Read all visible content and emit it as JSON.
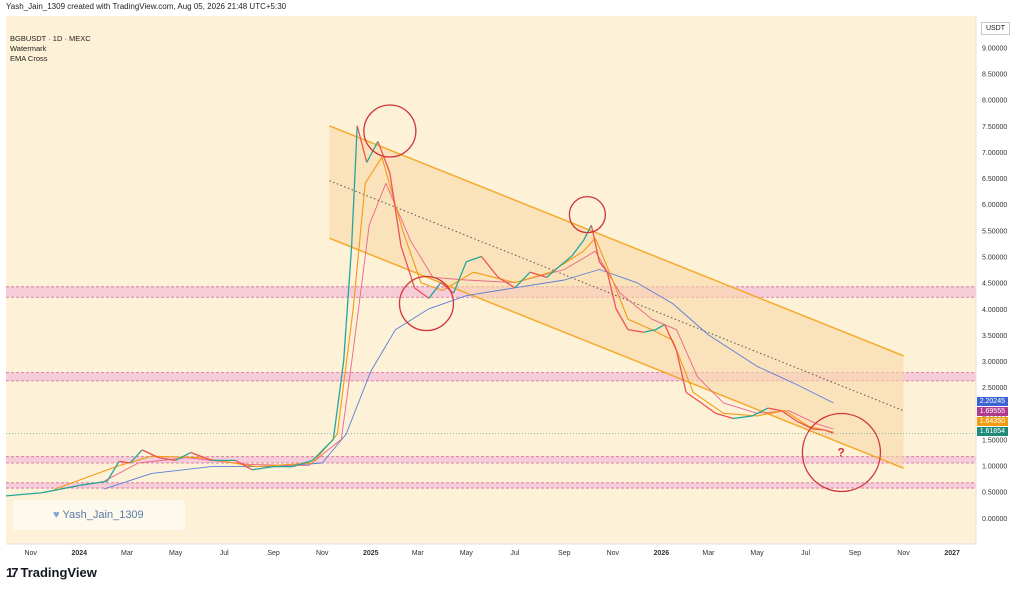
{
  "header": {
    "created_by": "Yash_Jain_1309 created with TradingView.com, Aug 05, 2026 21:48 UTC+5:30"
  },
  "legend": {
    "symbol": "BGBUSDT · 1D · MEXC",
    "line2": "Watermark",
    "line3": "EMA Cross"
  },
  "currency_label": "USDT",
  "watermark_text": "Yash_Jain_1309",
  "footer_logo": "TradingView",
  "annotation_question": "?",
  "colors": {
    "background": "#fdf1d7",
    "channel_line": "#f5a623",
    "channel_fill": "#f9d9a8",
    "zone_fill": "#f4c6d8",
    "zone_border": "#d06a9a",
    "circle": "#d0353c",
    "ema_fast": "#f39c12",
    "ema_slow": "#e8668a",
    "ema_long": "#5b7fd6",
    "candle_up": "#26a69a",
    "candle_down": "#ef5350"
  },
  "price_tags": [
    {
      "value": "2.20245",
      "color": "#3b63d1"
    },
    {
      "value": "1.69555",
      "color": "#b23a8c"
    },
    {
      "value": "1.64350",
      "color": "#f39c12"
    },
    {
      "value": "1.61854",
      "color": "#1f8a7a"
    }
  ],
  "chart_data": {
    "type": "line",
    "title": "BGBUSDT · 1D · MEXC",
    "y_axis_label": "USDT",
    "y_ticks": [
      0.0,
      0.5,
      1.0,
      1.5,
      2.0,
      2.5,
      3.0,
      3.5,
      4.0,
      4.5,
      5.0,
      5.5,
      6.0,
      6.5,
      7.0,
      7.5,
      8.0,
      8.5,
      9.0
    ],
    "y_tick_labels": [
      "0.00000",
      "0.50000",
      "1.00000",
      "1.50000",
      "2.00000",
      "2.50000",
      "3.00000",
      "3.50000",
      "4.00000",
      "4.50000",
      "5.00000",
      "5.50000",
      "6.00000",
      "6.50000",
      "7.00000",
      "7.50000",
      "8.00000",
      "8.50000",
      "9.00000"
    ],
    "ylim": [
      -0.5,
      9.6
    ],
    "x_axis_range": [
      "2023-10-01",
      "2027-01-31"
    ],
    "x_ticks": [
      {
        "date": "2023-11-01",
        "label": "Nov"
      },
      {
        "date": "2024-01-01",
        "label": "2024"
      },
      {
        "date": "2024-03-01",
        "label": "Mar"
      },
      {
        "date": "2024-05-01",
        "label": "May"
      },
      {
        "date": "2024-07-01",
        "label": "Jul"
      },
      {
        "date": "2024-09-01",
        "label": "Sep"
      },
      {
        "date": "2024-11-01",
        "label": "Nov"
      },
      {
        "date": "2025-01-01",
        "label": "2025"
      },
      {
        "date": "2025-03-01",
        "label": "Mar"
      },
      {
        "date": "2025-05-01",
        "label": "May"
      },
      {
        "date": "2025-07-01",
        "label": "Jul"
      },
      {
        "date": "2025-09-01",
        "label": "Sep"
      },
      {
        "date": "2025-11-01",
        "label": "Nov"
      },
      {
        "date": "2026-01-01",
        "label": "2026"
      },
      {
        "date": "2026-03-01",
        "label": "Mar"
      },
      {
        "date": "2026-05-01",
        "label": "May"
      },
      {
        "date": "2026-07-01",
        "label": "Jul"
      },
      {
        "date": "2026-09-01",
        "label": "Sep"
      },
      {
        "date": "2026-11-01",
        "label": "Nov"
      },
      {
        "date": "2027-01-01",
        "label": "2027"
      }
    ],
    "price": [
      [
        "2023-10-01",
        0.42
      ],
      [
        "2023-11-15",
        0.48
      ],
      [
        "2024-01-01",
        0.62
      ],
      [
        "2024-02-05",
        0.7
      ],
      [
        "2024-02-20",
        1.08
      ],
      [
        "2024-03-05",
        1.05
      ],
      [
        "2024-03-20",
        1.3
      ],
      [
        "2024-04-10",
        1.15
      ],
      [
        "2024-05-01",
        1.1
      ],
      [
        "2024-05-20",
        1.25
      ],
      [
        "2024-06-15",
        1.1
      ],
      [
        "2024-07-15",
        1.1
      ],
      [
        "2024-08-05",
        0.92
      ],
      [
        "2024-09-01",
        0.98
      ],
      [
        "2024-09-25",
        0.98
      ],
      [
        "2024-10-20",
        1.1
      ],
      [
        "2024-11-15",
        1.5
      ],
      [
        "2024-11-28",
        3.0
      ],
      [
        "2024-12-08",
        5.2
      ],
      [
        "2024-12-15",
        7.5
      ],
      [
        "2024-12-27",
        6.8
      ],
      [
        "2025-01-10",
        7.2
      ],
      [
        "2025-01-25",
        6.6
      ],
      [
        "2025-02-08",
        5.2
      ],
      [
        "2025-02-25",
        4.4
      ],
      [
        "2025-03-15",
        4.2
      ],
      [
        "2025-03-30",
        4.5
      ],
      [
        "2025-04-15",
        4.3
      ],
      [
        "2025-05-01",
        4.9
      ],
      [
        "2025-05-20",
        5.0
      ],
      [
        "2025-06-10",
        4.6
      ],
      [
        "2025-07-01",
        4.4
      ],
      [
        "2025-07-20",
        4.7
      ],
      [
        "2025-08-10",
        4.6
      ],
      [
        "2025-08-25",
        4.8
      ],
      [
        "2025-09-10",
        5.0
      ],
      [
        "2025-09-25",
        5.3
      ],
      [
        "2025-10-05",
        5.6
      ],
      [
        "2025-10-15",
        4.9
      ],
      [
        "2025-10-25",
        4.7
      ],
      [
        "2025-11-05",
        4.0
      ],
      [
        "2025-11-20",
        3.6
      ],
      [
        "2025-12-10",
        3.55
      ],
      [
        "2025-12-25",
        3.6
      ],
      [
        "2026-01-05",
        3.7
      ],
      [
        "2026-01-20",
        3.2
      ],
      [
        "2026-02-01",
        2.4
      ],
      [
        "2026-02-20",
        2.2
      ],
      [
        "2026-03-10",
        2.0
      ],
      [
        "2026-04-01",
        1.9
      ],
      [
        "2026-04-25",
        1.95
      ],
      [
        "2026-05-15",
        2.1
      ],
      [
        "2026-06-01",
        2.05
      ],
      [
        "2026-06-20",
        1.85
      ],
      [
        "2026-07-10",
        1.7
      ],
      [
        "2026-07-25",
        1.68
      ],
      [
        "2026-08-05",
        1.62
      ]
    ],
    "ema_fast": [
      [
        "2023-12-01",
        0.55
      ],
      [
        "2024-02-20",
        1.0
      ],
      [
        "2024-04-01",
        1.18
      ],
      [
        "2024-06-01",
        1.15
      ],
      [
        "2024-08-10",
        0.98
      ],
      [
        "2024-10-20",
        1.05
      ],
      [
        "2024-11-20",
        1.6
      ],
      [
        "2024-12-10",
        4.0
      ],
      [
        "2024-12-25",
        6.4
      ],
      [
        "2025-01-15",
        6.9
      ],
      [
        "2025-02-10",
        5.5
      ],
      [
        "2025-03-05",
        4.5
      ],
      [
        "2025-04-01",
        4.35
      ],
      [
        "2025-05-10",
        4.7
      ],
      [
        "2025-07-01",
        4.5
      ],
      [
        "2025-08-15",
        4.7
      ],
      [
        "2025-09-25",
        5.1
      ],
      [
        "2025-10-10",
        5.35
      ],
      [
        "2025-10-25",
        4.8
      ],
      [
        "2025-11-20",
        3.8
      ],
      [
        "2025-12-20",
        3.6
      ],
      [
        "2026-01-15",
        3.4
      ],
      [
        "2026-02-10",
        2.4
      ],
      [
        "2026-03-20",
        2.0
      ],
      [
        "2026-05-01",
        1.95
      ],
      [
        "2026-06-05",
        2.05
      ],
      [
        "2026-07-05",
        1.75
      ],
      [
        "2026-08-05",
        1.64
      ]
    ],
    "ema_slow": [
      [
        "2024-02-01",
        0.7
      ],
      [
        "2024-03-15",
        1.05
      ],
      [
        "2024-05-15",
        1.15
      ],
      [
        "2024-08-01",
        1.02
      ],
      [
        "2024-10-15",
        1.0
      ],
      [
        "2024-11-25",
        1.5
      ],
      [
        "2024-12-10",
        3.2
      ],
      [
        "2024-12-30",
        5.6
      ],
      [
        "2025-01-20",
        6.4
      ],
      [
        "2025-02-20",
        5.3
      ],
      [
        "2025-03-20",
        4.6
      ],
      [
        "2025-05-01",
        4.55
      ],
      [
        "2025-07-01",
        4.5
      ],
      [
        "2025-09-01",
        4.75
      ],
      [
        "2025-10-10",
        5.1
      ],
      [
        "2025-11-10",
        4.3
      ],
      [
        "2025-12-20",
        3.8
      ],
      [
        "2026-01-20",
        3.6
      ],
      [
        "2026-02-15",
        2.7
      ],
      [
        "2026-03-20",
        2.2
      ],
      [
        "2026-05-01",
        2.0
      ],
      [
        "2026-06-10",
        2.05
      ],
      [
        "2026-07-15",
        1.8
      ],
      [
        "2026-08-05",
        1.7
      ]
    ],
    "ema_long": [
      [
        "2024-02-01",
        0.55
      ],
      [
        "2024-04-01",
        0.85
      ],
      [
        "2024-06-15",
        0.98
      ],
      [
        "2024-09-01",
        0.98
      ],
      [
        "2024-11-01",
        1.05
      ],
      [
        "2024-12-01",
        1.6
      ],
      [
        "2025-01-01",
        2.8
      ],
      [
        "2025-02-01",
        3.6
      ],
      [
        "2025-03-15",
        4.0
      ],
      [
        "2025-05-01",
        4.25
      ],
      [
        "2025-07-01",
        4.4
      ],
      [
        "2025-09-01",
        4.55
      ],
      [
        "2025-10-15",
        4.75
      ],
      [
        "2025-12-01",
        4.5
      ],
      [
        "2026-01-15",
        4.1
      ],
      [
        "2026-03-01",
        3.5
      ],
      [
        "2026-05-01",
        2.9
      ],
      [
        "2026-06-20",
        2.55
      ],
      [
        "2026-08-05",
        2.2
      ]
    ],
    "channel": {
      "upper": [
        [
          "2024-11-10",
          7.5
        ],
        [
          "2026-11-01",
          3.1
        ]
      ],
      "lower": [
        [
          "2024-11-10",
          5.35
        ],
        [
          "2026-11-01",
          0.95
        ]
      ],
      "mid": [
        [
          "2024-11-10",
          6.45
        ],
        [
          "2026-11-01",
          2.05
        ]
      ]
    },
    "zones": [
      {
        "top": 4.42,
        "bottom": 4.22
      },
      {
        "top": 2.78,
        "bottom": 2.62
      },
      {
        "top": 1.17,
        "bottom": 1.05
      },
      {
        "top": 0.67,
        "bottom": 0.57
      }
    ],
    "circles": [
      {
        "date": "2025-01-25",
        "value": 7.4,
        "r": 26
      },
      {
        "date": "2025-03-12",
        "value": 4.1,
        "r": 27
      },
      {
        "date": "2025-09-30",
        "value": 5.8,
        "r": 18
      },
      {
        "date": "2026-08-15",
        "value": 1.25,
        "r": 39
      }
    ],
    "current_price": 1.61854
  }
}
